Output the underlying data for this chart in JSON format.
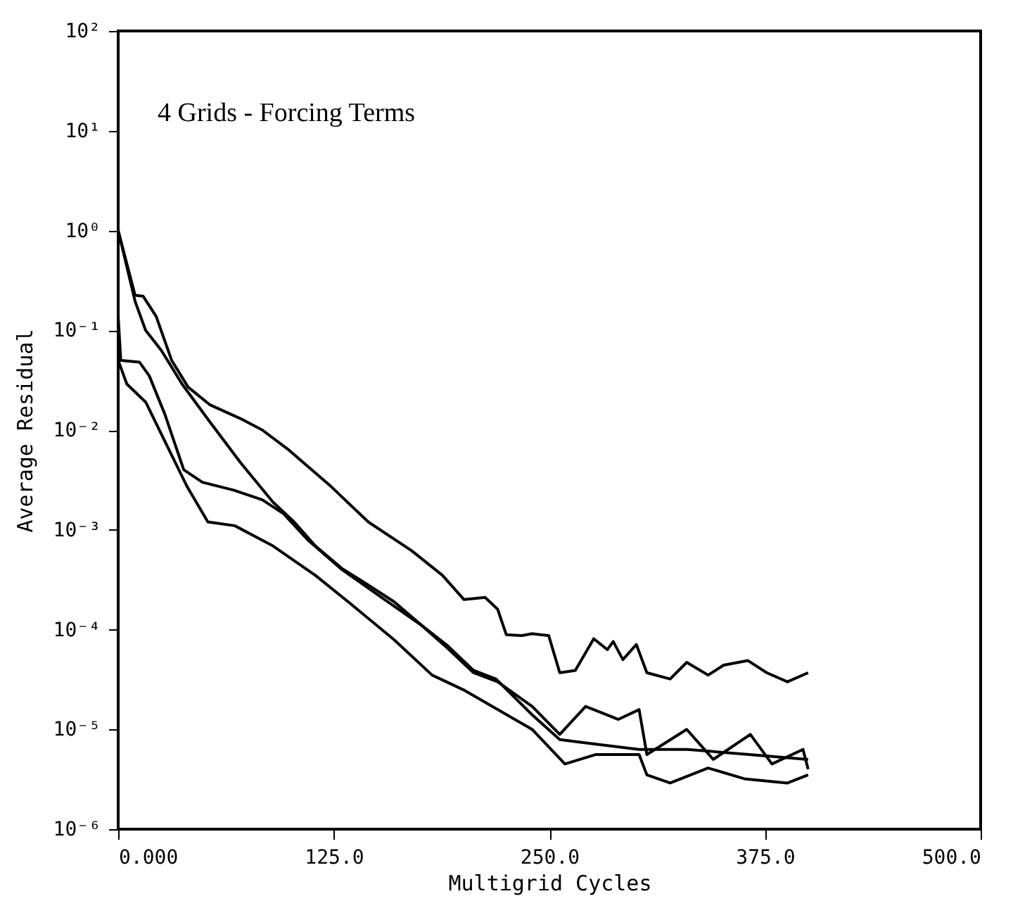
{
  "chart_data": {
    "type": "line",
    "xlabel": "Multigrid Cycles",
    "ylabel": "Average Residual",
    "log": "y",
    "grid": false,
    "marker": "none",
    "line_style": "solid",
    "annotations": [
      "4 Grids - Forcing Terms"
    ],
    "xlim": [
      0,
      500
    ],
    "xticks": [
      {
        "value": 0,
        "label": "0.000"
      },
      {
        "value": 125,
        "label": "125.0"
      },
      {
        "value": 250,
        "label": "250.0"
      },
      {
        "value": 375,
        "label": "375.0"
      },
      {
        "value": 500,
        "label": "500.0"
      }
    ],
    "ylim": [
      1e-06,
      100
    ],
    "yticks": [
      {
        "value": 100,
        "label": "10²"
      },
      {
        "value": 10,
        "label": "10¹"
      },
      {
        "value": 1,
        "label": "10⁰"
      },
      {
        "value": 0.1,
        "label": "10⁻¹"
      },
      {
        "value": 0.01,
        "label": "10⁻²"
      },
      {
        "value": 0.001,
        "label": "10⁻³"
      },
      {
        "value": 0.0001,
        "label": "10⁻⁴"
      },
      {
        "value": 1e-05,
        "label": "10⁻⁵"
      },
      {
        "value": 1e-06,
        "label": "10⁻⁶"
      }
    ],
    "series": [
      {
        "color": "#000000",
        "x": [
          0,
          9.8,
          14.4,
          22,
          31,
          40.5,
          53,
          71,
          83.6,
          99,
          123.6,
          145,
          170,
          188,
          200.5,
          212.7,
          220,
          225,
          234,
          240,
          249.6,
          256,
          265,
          275.7,
          283.6,
          287,
          292.6,
          300.4,
          306.5,
          320,
          329.6,
          342,
          351,
          365,
          376,
          388,
          400
        ],
        "values": [
          1,
          0.224,
          0.22,
          0.138,
          0.05,
          0.027,
          0.018,
          0.013,
          0.01,
          0.0063,
          0.0027,
          0.0012,
          0.00062,
          0.00035,
          0.0002,
          0.00021,
          0.00016,
          8.9e-05,
          8.7e-05,
          9.1e-05,
          8.7e-05,
          3.7e-05,
          3.9e-05,
          8.1e-05,
          6.3e-05,
          7.6e-05,
          5e-05,
          7.1e-05,
          3.7e-05,
          3.2e-05,
          4.7e-05,
          3.5e-05,
          4.4e-05,
          4.9e-05,
          3.7e-05,
          3e-05,
          3.7e-05
        ]
      },
      {
        "color": "#000000",
        "x": [
          0,
          9.8,
          15.9,
          25,
          37,
          52.8,
          71,
          89.7,
          102,
          114.3,
          129.7,
          145,
          160,
          176,
          191,
          206,
          219,
          240,
          256,
          277,
          302,
          330,
          366,
          400
        ],
        "values": [
          1,
          0.195,
          0.1,
          0.063,
          0.029,
          0.0123,
          0.0047,
          0.0019,
          0.0012,
          0.00069,
          0.00041,
          0.00028,
          0.00019,
          0.00011,
          6.9e-05,
          3.9e-05,
          3.2e-05,
          1.4e-05,
          7.9e-06,
          7.1e-06,
          6.3e-06,
          6.3e-06,
          5.6e-06,
          5e-06
        ]
      },
      {
        "color": "#000000",
        "x": [
          0,
          1.5,
          12.3,
          18,
          27,
          38,
          48.8,
          67,
          83.6,
          95.9,
          110,
          129.7,
          151,
          176,
          191,
          206,
          220,
          240,
          256,
          271,
          290,
          302,
          306.5,
          329.6,
          345,
          366.5,
          379,
          397,
          400
        ],
        "values": [
          0.138,
          0.05,
          0.048,
          0.035,
          0.0145,
          0.004,
          0.003,
          0.0025,
          0.002,
          0.00145,
          0.00079,
          0.0004,
          0.00022,
          0.00011,
          6.5e-05,
          3.7e-05,
          3e-05,
          1.7e-05,
          8.9e-06,
          1.7e-05,
          1.26e-05,
          1.58e-05,
          5.6e-06,
          1e-05,
          5e-06,
          8.9e-06,
          4.5e-06,
          6.3e-06,
          4e-06
        ]
      },
      {
        "color": "#000000",
        "x": [
          0,
          5,
          16,
          27.6,
          40,
          52,
          67.6,
          89.7,
          114.3,
          135,
          160,
          182,
          200,
          220,
          240,
          259,
          277,
          302,
          306.5,
          320,
          342,
          363,
          388,
          400
        ],
        "values": [
          0.05,
          0.029,
          0.019,
          0.0074,
          0.0027,
          0.0012,
          0.0011,
          0.00069,
          0.00035,
          0.00018,
          7.9e-05,
          3.5e-05,
          2.5e-05,
          1.58e-05,
          1e-05,
          4.5e-06,
          5.6e-06,
          5.6e-06,
          3.5e-06,
          2.9e-06,
          4.1e-06,
          3.2e-06,
          2.9e-06,
          3.5e-06
        ]
      }
    ]
  }
}
